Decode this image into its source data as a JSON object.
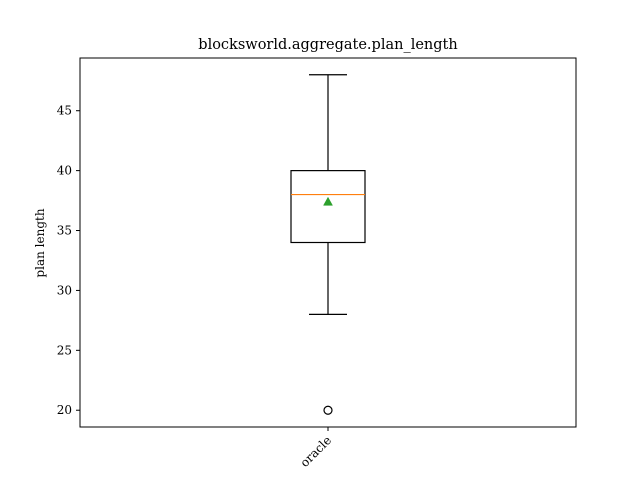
{
  "chart_data": {
    "type": "box",
    "title": "blocksworld.aggregate.plan_length",
    "xlabel": "",
    "ylabel": "plan length",
    "ylim": [
      18.6,
      49.4
    ],
    "yticks": [
      20,
      25,
      30,
      35,
      40,
      45
    ],
    "categories": [
      "oracle"
    ],
    "boxes": [
      {
        "category": "oracle",
        "whisker_low": 28,
        "q1": 34,
        "median": 38,
        "q3": 40,
        "whisker_high": 48,
        "mean": 37.4,
        "outliers": [
          20
        ]
      }
    ],
    "grid": false,
    "colors": {
      "box": "#000000",
      "median": "#ff7f0e",
      "mean": "#2ca02c",
      "outlier": "#000000"
    }
  }
}
